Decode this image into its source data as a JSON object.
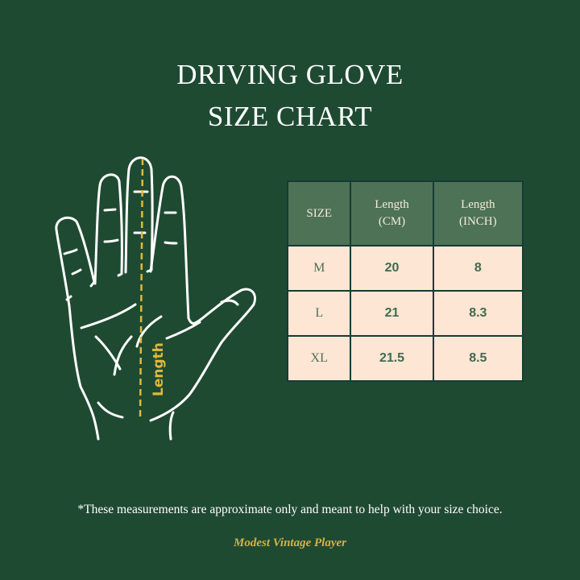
{
  "title": {
    "line1": "DRIVING GLOVE",
    "line2": "SIZE CHART"
  },
  "illustration": {
    "label": "Length",
    "accent_color": "#e0b83a"
  },
  "table": {
    "headers": [
      {
        "line1": "SIZE",
        "line2": ""
      },
      {
        "line1": "Length",
        "line2": "(CM)"
      },
      {
        "line1": "Length",
        "line2": "(INCH)"
      }
    ],
    "rows": [
      {
        "size": "M",
        "cm": "20",
        "inch": "8"
      },
      {
        "size": "L",
        "cm": "21",
        "inch": "8.3"
      },
      {
        "size": "XL",
        "cm": "21.5",
        "inch": "8.5"
      }
    ]
  },
  "note": "*These measurements are approximate only and meant to help with your size choice.",
  "brand": "Modest Vintage Player",
  "colors": {
    "background": "#1f4a32",
    "header_bg": "#4d7256",
    "cell_bg": "#fde6d3"
  }
}
